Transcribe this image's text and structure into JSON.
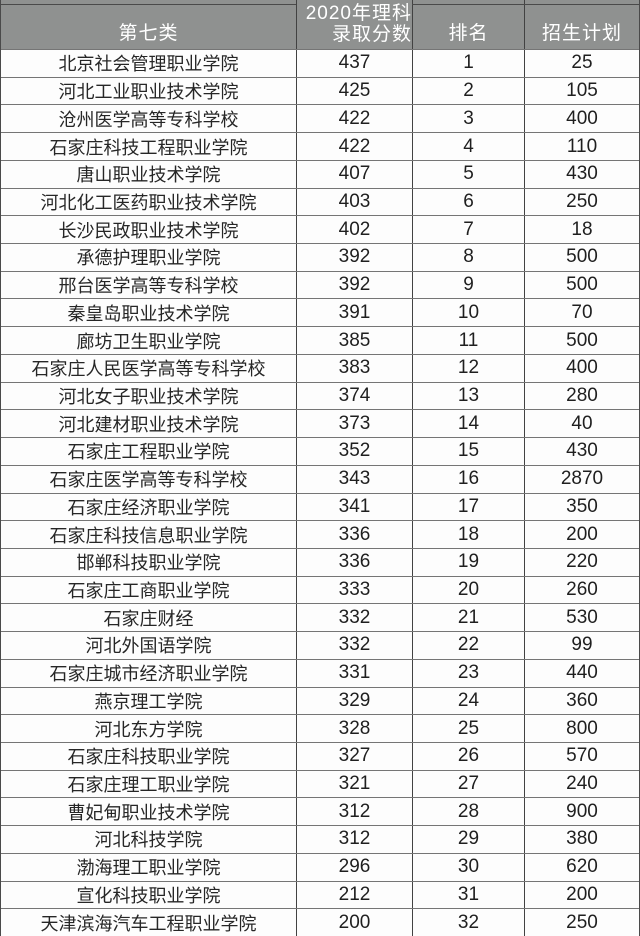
{
  "header": {
    "category": "第七类",
    "score_line1": "2020年理科",
    "score_line2": "录取分数",
    "rank": "排名",
    "plan": "招生计划"
  },
  "colors": {
    "header_bg": "#8f9190",
    "header_text": "#ffffff",
    "body_bg": "#fdfdfd",
    "body_text": "#262626",
    "vertical_border": "#424242",
    "horizontal_border": "#757575"
  },
  "chart_data": {
    "type": "table",
    "title": "第七类 2020年理科录取分数排名与招生计划",
    "columns": [
      "第七类",
      "2020年理科录取分数",
      "排名",
      "招生计划"
    ],
    "rows": [
      [
        "北京社会管理职业学院",
        437,
        1,
        25
      ],
      [
        "河北工业职业技术学院",
        425,
        2,
        105
      ],
      [
        "沧州医学高等专科学校",
        422,
        3,
        400
      ],
      [
        "石家庄科技工程职业学院",
        422,
        4,
        110
      ],
      [
        "唐山职业技术学院",
        407,
        5,
        430
      ],
      [
        "河北化工医药职业技术学院",
        403,
        6,
        250
      ],
      [
        "长沙民政职业技术学院",
        402,
        7,
        18
      ],
      [
        "承德护理职业学院",
        392,
        8,
        500
      ],
      [
        "邢台医学高等专科学校",
        392,
        9,
        500
      ],
      [
        "秦皇岛职业技术学院",
        391,
        10,
        70
      ],
      [
        "廊坊卫生职业学院",
        385,
        11,
        500
      ],
      [
        "石家庄人民医学高等专科学校",
        383,
        12,
        400
      ],
      [
        "河北女子职业技术学院",
        374,
        13,
        280
      ],
      [
        "河北建材职业技术学院",
        373,
        14,
        40
      ],
      [
        "石家庄工程职业学院",
        352,
        15,
        430
      ],
      [
        "石家庄医学高等专科学校",
        343,
        16,
        2870
      ],
      [
        "石家庄经济职业学院",
        341,
        17,
        350
      ],
      [
        "石家庄科技信息职业学院",
        336,
        18,
        200
      ],
      [
        "邯郸科技职业学院",
        336,
        19,
        220
      ],
      [
        "石家庄工商职业学院",
        333,
        20,
        260
      ],
      [
        "石家庄财经",
        332,
        21,
        530
      ],
      [
        "河北外国语学院",
        332,
        22,
        99
      ],
      [
        "石家庄城市经济职业学院",
        331,
        23,
        440
      ],
      [
        "燕京理工学院",
        329,
        24,
        360
      ],
      [
        "河北东方学院",
        328,
        25,
        800
      ],
      [
        "石家庄科技职业学院",
        327,
        26,
        570
      ],
      [
        "石家庄理工职业学院",
        321,
        27,
        240
      ],
      [
        "曹妃甸职业技术学院",
        312,
        28,
        900
      ],
      [
        "河北科技学院",
        312,
        29,
        380
      ],
      [
        "渤海理工职业学院",
        296,
        30,
        620
      ],
      [
        "宣化科技职业学院",
        212,
        31,
        200
      ],
      [
        "天津滨海汽车工程职业学院",
        200,
        32,
        250
      ]
    ]
  }
}
